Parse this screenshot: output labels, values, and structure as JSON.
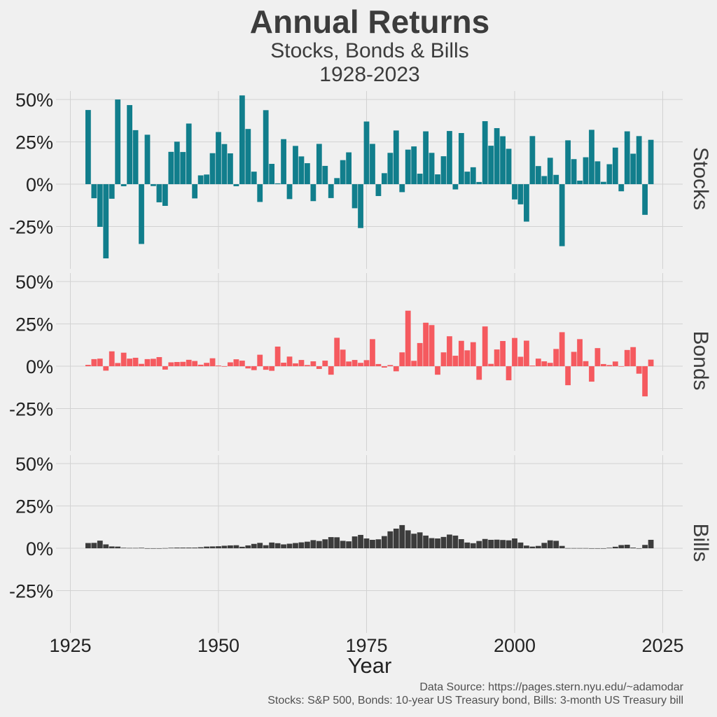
{
  "title": "Annual Returns",
  "subtitle_lines": [
    "Stocks, Bonds & Bills",
    "1928-2023"
  ],
  "caption_lines": [
    "Data Source: https://pages.stern.nyu.edu/~adamodar",
    "Stocks: S&P 500, Bonds: 10-year US Treasury bond, Bills: 3-month US Treasury bill"
  ],
  "chart_data": {
    "type": "bar",
    "facets": "stacked vertically, labels on right",
    "xlabel": "Year",
    "x_ticks": [
      1925,
      1950,
      1975,
      2000,
      2025
    ],
    "x_tick_labels": [
      "1925",
      "1950",
      "1975",
      "2000",
      "2025"
    ],
    "xlim": [
      1925,
      2025
    ],
    "ylim": [
      -0.5,
      0.55
    ],
    "y_ticks": [
      -0.25,
      0,
      0.25,
      0.5
    ],
    "y_tick_labels": [
      "-25%",
      "0%",
      "25%",
      "50%"
    ],
    "grid": true,
    "years_start": 1928,
    "years_end": 2023,
    "series": [
      {
        "name": "Stocks",
        "color": "#117e8c",
        "values": [
          0.438,
          -0.083,
          -0.252,
          -0.438,
          -0.086,
          0.5,
          -0.012,
          0.467,
          0.319,
          -0.353,
          0.292,
          -0.011,
          -0.107,
          -0.128,
          0.191,
          0.251,
          0.19,
          0.358,
          -0.084,
          0.052,
          0.057,
          0.183,
          0.308,
          0.237,
          0.182,
          -0.012,
          0.524,
          0.326,
          0.074,
          -0.105,
          0.437,
          0.12,
          0.005,
          0.266,
          -0.088,
          0.226,
          0.164,
          0.124,
          -0.1,
          0.238,
          0.108,
          -0.082,
          0.036,
          0.142,
          0.188,
          -0.142,
          -0.259,
          0.37,
          0.238,
          -0.07,
          0.065,
          0.185,
          0.317,
          -0.047,
          0.204,
          0.223,
          0.062,
          0.312,
          0.185,
          0.058,
          0.165,
          0.314,
          -0.031,
          0.302,
          0.074,
          0.1,
          0.013,
          0.372,
          0.227,
          0.331,
          0.283,
          0.209,
          -0.09,
          -0.119,
          -0.221,
          0.284,
          0.107,
          0.048,
          0.156,
          0.055,
          -0.366,
          0.259,
          0.148,
          0.021,
          0.159,
          0.321,
          0.135,
          0.014,
          0.118,
          0.216,
          -0.042,
          0.312,
          0.18,
          0.284,
          -0.181,
          0.262
        ]
      },
      {
        "name": "Bonds",
        "color": "#f55a5f",
        "values": [
          0.008,
          0.042,
          0.045,
          -0.026,
          0.088,
          0.019,
          0.08,
          0.045,
          0.05,
          0.014,
          0.042,
          0.044,
          0.054,
          -0.02,
          0.023,
          0.025,
          0.026,
          0.038,
          0.031,
          0.009,
          0.02,
          0.047,
          0.004,
          -0.003,
          0.023,
          0.041,
          0.033,
          -0.013,
          -0.023,
          0.068,
          -0.021,
          -0.027,
          0.116,
          0.021,
          0.057,
          0.017,
          0.037,
          0.007,
          0.029,
          -0.016,
          0.033,
          -0.05,
          0.168,
          0.098,
          0.028,
          0.037,
          0.02,
          0.036,
          0.16,
          0.013,
          -0.008,
          0.007,
          -0.03,
          0.082,
          0.328,
          0.032,
          0.137,
          0.257,
          0.243,
          -0.05,
          0.082,
          0.177,
          0.062,
          0.15,
          0.094,
          0.142,
          -0.08,
          0.235,
          0.014,
          0.099,
          0.149,
          -0.083,
          0.167,
          0.056,
          0.151,
          0.004,
          0.045,
          0.029,
          0.02,
          0.102,
          0.201,
          -0.112,
          0.085,
          0.16,
          0.03,
          -0.091,
          0.107,
          0.013,
          0.007,
          0.028,
          0.0,
          0.096,
          0.113,
          -0.044,
          -0.178,
          0.039
        ]
      },
      {
        "name": "Bills",
        "color": "#3c3c3c",
        "values": [
          0.031,
          0.032,
          0.045,
          0.023,
          0.011,
          0.01,
          0.003,
          0.002,
          0.002,
          0.003,
          0.0,
          0.0,
          0.0,
          0.001,
          0.003,
          0.004,
          0.004,
          0.004,
          0.004,
          0.006,
          0.01,
          0.011,
          0.012,
          0.015,
          0.017,
          0.018,
          0.009,
          0.017,
          0.026,
          0.032,
          0.018,
          0.034,
          0.03,
          0.023,
          0.027,
          0.031,
          0.035,
          0.039,
          0.048,
          0.043,
          0.053,
          0.066,
          0.065,
          0.044,
          0.041,
          0.07,
          0.079,
          0.058,
          0.05,
          0.053,
          0.072,
          0.1,
          0.116,
          0.137,
          0.106,
          0.086,
          0.094,
          0.075,
          0.06,
          0.058,
          0.067,
          0.081,
          0.075,
          0.054,
          0.034,
          0.03,
          0.043,
          0.055,
          0.05,
          0.051,
          0.049,
          0.047,
          0.058,
          0.034,
          0.016,
          0.01,
          0.014,
          0.032,
          0.047,
          0.044,
          0.014,
          0.001,
          0.001,
          0.001,
          0.001,
          0.0,
          0.0,
          0.0,
          0.003,
          0.009,
          0.019,
          0.021,
          0.004,
          0.0,
          0.02,
          0.05
        ]
      }
    ]
  }
}
